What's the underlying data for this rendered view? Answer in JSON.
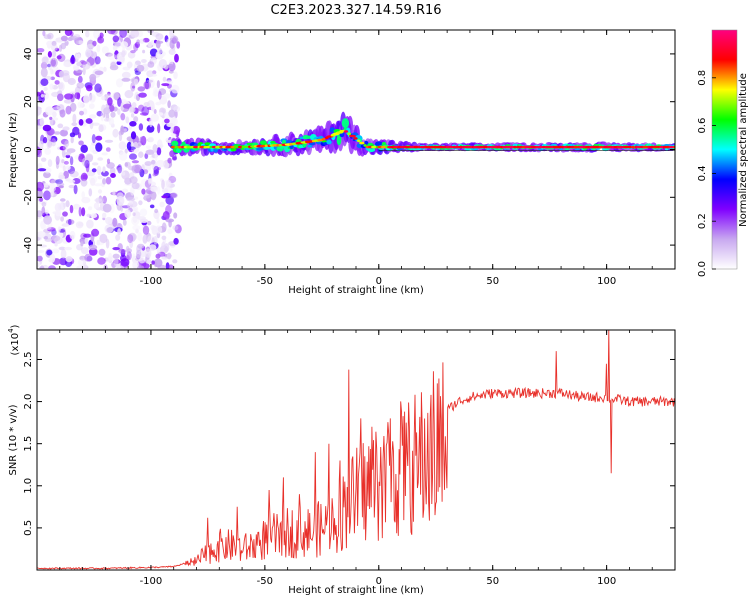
{
  "figure_title": "C2E3.2023.327.14.59.R16",
  "colors": {
    "trace": "#e8302a",
    "axis": "#000000"
  },
  "chart_data": [
    {
      "type": "heatmap",
      "xlabel": "Height of straight line (km)",
      "ylabel": "Frequency (Hz)",
      "xlim": [
        -150,
        130
      ],
      "ylim": [
        -50,
        50
      ],
      "x_ticks": [
        -100,
        -50,
        0,
        50,
        100
      ],
      "x_tick_labels": [
        "-100",
        "-50",
        "0",
        "50",
        "100"
      ],
      "y_ticks": [
        -40,
        -20,
        0,
        20,
        40
      ],
      "y_tick_labels": [
        "-40",
        "-20",
        "0",
        "20",
        "40"
      ],
      "colorbar": {
        "label": "Normalized spectral amplitude",
        "range": [
          0,
          1
        ],
        "ticks": [
          0.0,
          0.2,
          0.4,
          0.6,
          0.8
        ],
        "tick_labels": [
          "0.0",
          "0.2",
          "0.4",
          "0.6",
          "0.8"
        ],
        "colormap": [
          "#ffffff",
          "#c8a8f0",
          "#8000ff",
          "#0000ff",
          "#00ffff",
          "#00ff00",
          "#ffff00",
          "#ff0000",
          "#ff0080"
        ]
      },
      "noise_region_x": [
        -150,
        -88
      ],
      "signal_band": [
        {
          "x": -90,
          "y": 1,
          "spread": 4
        },
        {
          "x": -60,
          "y": 1,
          "spread": 3
        },
        {
          "x": -40,
          "y": 2,
          "spread": 5
        },
        {
          "x": -25,
          "y": 4,
          "spread": 6
        },
        {
          "x": -15,
          "y": 8,
          "spread": 9
        },
        {
          "x": -5,
          "y": 1,
          "spread": 4
        },
        {
          "x": 20,
          "y": 1,
          "spread": 1.5
        },
        {
          "x": 100,
          "y": 1,
          "spread": 2
        },
        {
          "x": 130,
          "y": 1,
          "spread": 1.5
        }
      ]
    },
    {
      "type": "line",
      "xlabel": "Height of straight line (km)",
      "ylabel": "SNR (10 * v/v)",
      "y_multiplier": "(x10",
      "y_multiplier_exp": "4",
      "y_multiplier_close": ")",
      "xlim": [
        -150,
        130
      ],
      "ylim": [
        0,
        2.85
      ],
      "x_ticks": [
        -100,
        -50,
        0,
        50,
        100
      ],
      "x_tick_labels": [
        "-100",
        "-50",
        "0",
        "50",
        "100"
      ],
      "y_ticks": [
        0.5,
        1.0,
        1.5,
        2.0,
        2.5
      ],
      "y_tick_labels": [
        "0.5",
        "1.0",
        "1.5",
        "2.0",
        "2.5"
      ],
      "series": [
        {
          "x": [
            -150,
            -120,
            -100,
            -90,
            -80,
            -75,
            -70,
            -65,
            -60,
            -55,
            -50,
            -45,
            -40,
            -35,
            -30,
            -25,
            -20,
            -15,
            -10,
            -5,
            0,
            5,
            10,
            15,
            20,
            25,
            30,
            35,
            40,
            50,
            60,
            70,
            80,
            90,
            100,
            110,
            120,
            130
          ],
          "y": [
            0.02,
            0.02,
            0.03,
            0.04,
            0.12,
            0.25,
            0.35,
            0.35,
            0.3,
            0.35,
            0.45,
            0.5,
            0.55,
            0.55,
            0.55,
            0.6,
            0.7,
            0.9,
            1.05,
            1.2,
            1.3,
            1.4,
            1.45,
            1.5,
            1.6,
            1.75,
            1.9,
            2.0,
            2.05,
            2.1,
            2.1,
            2.1,
            2.1,
            2.05,
            2.05,
            2.0,
            2.0,
            2.0
          ]
        }
      ],
      "spikes": [
        {
          "x": -75,
          "y": 0.62
        },
        {
          "x": -62,
          "y": 0.75
        },
        {
          "x": -48,
          "y": 0.95
        },
        {
          "x": -42,
          "y": 1.1
        },
        {
          "x": -35,
          "y": 0.9
        },
        {
          "x": -28,
          "y": 1.4
        },
        {
          "x": -22,
          "y": 1.5
        },
        {
          "x": -17,
          "y": 1.3
        },
        {
          "x": -13,
          "y": 2.38
        },
        {
          "x": -8,
          "y": 1.8
        },
        {
          "x": -3,
          "y": 1.7
        },
        {
          "x": 5,
          "y": 1.8
        },
        {
          "x": 12,
          "y": 1.75
        },
        {
          "x": 78,
          "y": 2.6
        },
        {
          "x": 100,
          "y": 2.45
        },
        {
          "x": 101,
          "y": 2.85
        },
        {
          "x": 102,
          "y": 1.15
        }
      ]
    }
  ]
}
